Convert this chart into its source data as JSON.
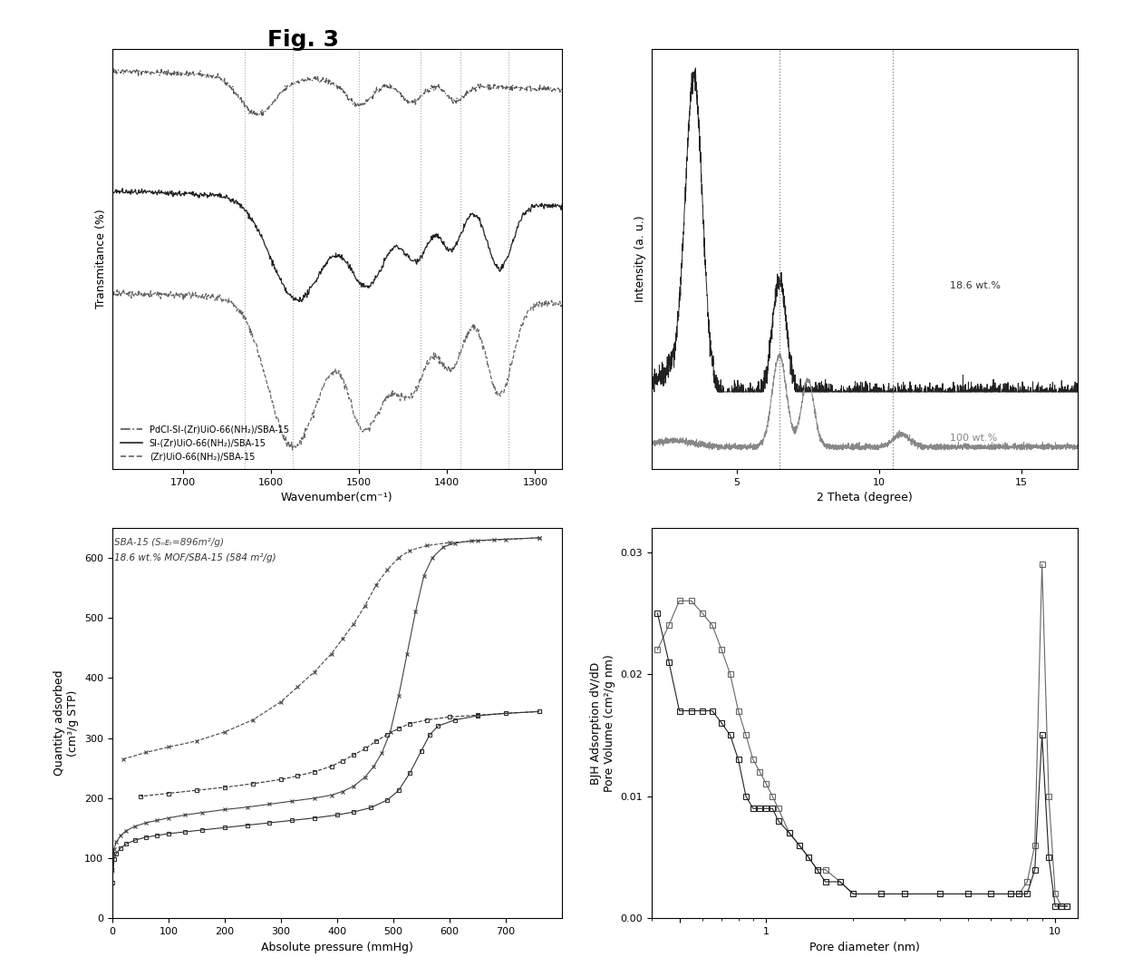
{
  "title": "Fig. 3",
  "title_fontsize": 18,
  "title_fontweight": "bold",
  "ir_vlines": [
    1630,
    1575,
    1500,
    1430,
    1385,
    1330
  ],
  "ir_xlabel": "Wavenumber(cm⁻¹)",
  "ir_ylabel": "Transmitance (%)",
  "ir_xlim": [
    1780,
    1270
  ],
  "ir_legend": [
    "PdCl-SI-(Zr)UiO-66(NH₂)/SBA-15",
    "SI-(Zr)UiO-66(NH₂)/SBA-15",
    "(Zr)UiO-66(NH₂)/SBA-15"
  ],
  "xrd_xlabel": "2 Theta (degree)",
  "xrd_ylabel": "Intensity (a. u.)",
  "xrd_xlim": [
    2,
    17
  ],
  "xrd_xticks": [
    5,
    10,
    15
  ],
  "xrd_vlines": [
    6.5,
    10.5
  ],
  "xrd_labels": [
    "18.6 wt.%",
    "100 wt.%"
  ],
  "bet_xlabel": "Absolute pressure (mmHg)",
  "bet_ylabel": "Quantity adsorbed\n(cm³/g STP)",
  "bet_xlim": [
    0,
    800
  ],
  "bet_ylim": [
    0,
    650
  ],
  "bet_legend_line1": "SBA-15 (Sₙᴇₜ=896m²/g)",
  "bet_legend_line2": "18.6 wt.% MOF/SBA-15 (584 m²/g)",
  "bjh_xlabel": "Pore diameter (nm)",
  "bjh_ylabel": "BJH Adsorption dV/dD\nPore Volume (cm²/g nm)",
  "bjh_xlim_log": [
    0.4,
    12
  ],
  "bjh_ylim": [
    0,
    0.032
  ],
  "gray_dark": "#222222",
  "gray_mid": "#555555",
  "gray_light": "#888888",
  "background": "#ffffff"
}
